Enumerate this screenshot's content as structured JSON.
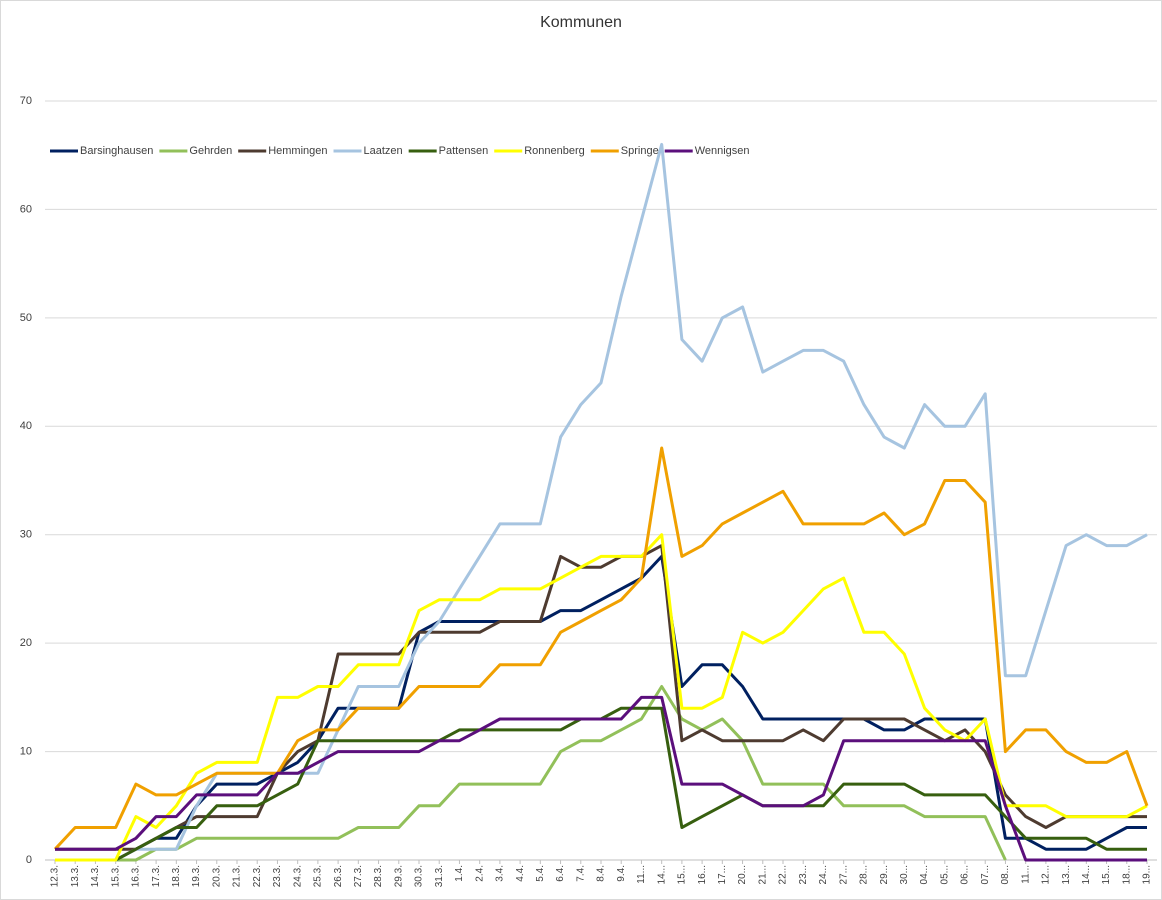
{
  "chart_data": {
    "type": "line",
    "title": "Kommunen",
    "categories": [
      "12.3.",
      "13.3.",
      "14.3.",
      "15.3.",
      "16.3.",
      "17.3.",
      "18.3.",
      "19.3.",
      "20.3.",
      "21.3.",
      "22.3.",
      "23.3.",
      "24.3.",
      "25.3.",
      "26.3.",
      "27.3.",
      "28.3.",
      "29.3.",
      "30.3.",
      "31.3.",
      "1.4.",
      "2.4.",
      "3.4.",
      "4.4.",
      "5.4.",
      "6.4.",
      "7.4.",
      "8.4.",
      "9.4.",
      "11...",
      "14...",
      "15...",
      "16...",
      "17...",
      "20...",
      "21...",
      "22...",
      "23...",
      "24...",
      "27...",
      "28...",
      "29...",
      "30...",
      "04...",
      "05...",
      "06...",
      "07...",
      "08...",
      "11...",
      "12...",
      "13...",
      "14...",
      "15...",
      "18...",
      "19..."
    ],
    "ylim": [
      0,
      70
    ],
    "yticks": [
      0,
      10,
      20,
      30,
      40,
      50,
      60,
      70
    ],
    "grid": true,
    "legend": "top-left",
    "series": [
      {
        "name": "Barsinghausen",
        "color": "#002060",
        "values": [
          null,
          null,
          null,
          0,
          1,
          2,
          2,
          5,
          7,
          7,
          7,
          8,
          9,
          11,
          14,
          14,
          14,
          14,
          21,
          22,
          22,
          22,
          22,
          22,
          22,
          23,
          23,
          24,
          25,
          26,
          28,
          16,
          18,
          18,
          16,
          13,
          13,
          13,
          13,
          13,
          13,
          12,
          12,
          13,
          13,
          13,
          13,
          2,
          2,
          1,
          1,
          1,
          2,
          3,
          3
        ]
      },
      {
        "name": "Gehrden",
        "color": "#92c05a",
        "values": [
          0,
          0,
          0,
          0,
          0,
          1,
          1,
          2,
          2,
          2,
          2,
          2,
          2,
          2,
          2,
          3,
          3,
          3,
          5,
          5,
          7,
          7,
          7,
          7,
          7,
          10,
          11,
          11,
          12,
          13,
          16,
          13,
          12,
          13,
          11,
          7,
          7,
          7,
          7,
          5,
          5,
          5,
          5,
          4,
          4,
          4,
          4,
          0,
          null,
          null,
          null,
          null,
          null,
          null,
          null
        ]
      },
      {
        "name": "Hemmingen",
        "color": "#4e3b30",
        "values": [
          1,
          1,
          1,
          1,
          1,
          2,
          3,
          4,
          4,
          4,
          4,
          8,
          10,
          11,
          19,
          19,
          19,
          19,
          21,
          21,
          21,
          21,
          22,
          22,
          22,
          28,
          27,
          27,
          28,
          28,
          29,
          11,
          12,
          11,
          11,
          11,
          11,
          12,
          11,
          13,
          13,
          13,
          13,
          12,
          11,
          12,
          10,
          6,
          4,
          3,
          4,
          4,
          4,
          4,
          4
        ]
      },
      {
        "name": "Laatzen",
        "color": "#a6c4e0",
        "values": [
          0,
          0,
          0,
          0,
          1,
          1,
          1,
          5,
          8,
          8,
          8,
          8,
          8,
          8,
          12,
          16,
          16,
          16,
          20,
          22,
          25,
          28,
          31,
          31,
          31,
          39,
          42,
          44,
          52,
          59,
          66,
          48,
          46,
          50,
          51,
          45,
          46,
          47,
          47,
          46,
          42,
          39,
          38,
          42,
          40,
          40,
          43,
          17,
          17,
          23,
          29,
          30,
          29,
          29,
          30
        ]
      },
      {
        "name": "Pattensen",
        "color": "#375f0f",
        "values": [
          null,
          null,
          null,
          0,
          1,
          2,
          3,
          3,
          5,
          5,
          5,
          6,
          7,
          11,
          11,
          11,
          11,
          11,
          11,
          11,
          12,
          12,
          12,
          12,
          12,
          12,
          13,
          13,
          14,
          14,
          14,
          3,
          4,
          5,
          6,
          5,
          5,
          5,
          5,
          7,
          7,
          7,
          7,
          6,
          6,
          6,
          6,
          4,
          2,
          2,
          2,
          2,
          1,
          1,
          1
        ]
      },
      {
        "name": "Ronnenberg",
        "color": "#ffff00",
        "values": [
          0,
          0,
          0,
          0,
          4,
          3,
          5,
          8,
          9,
          9,
          9,
          15,
          15,
          16,
          16,
          18,
          18,
          18,
          23,
          24,
          24,
          24,
          25,
          25,
          25,
          26,
          27,
          28,
          28,
          28,
          30,
          14,
          14,
          15,
          21,
          20,
          21,
          23,
          25,
          26,
          21,
          21,
          19,
          14,
          12,
          11,
          13,
          5,
          5,
          5,
          4,
          4,
          4,
          4,
          5
        ]
      },
      {
        "name": "Springe",
        "color": "#f0a000",
        "values": [
          1,
          3,
          3,
          3,
          7,
          6,
          6,
          7,
          8,
          8,
          8,
          8,
          11,
          12,
          12,
          14,
          14,
          14,
          16,
          16,
          16,
          16,
          18,
          18,
          18,
          21,
          22,
          23,
          24,
          26,
          38,
          28,
          29,
          31,
          32,
          33,
          34,
          31,
          31,
          31,
          31,
          32,
          30,
          31,
          35,
          35,
          33,
          10,
          12,
          12,
          10,
          9,
          9,
          10,
          5
        ]
      },
      {
        "name": "Wennigsen",
        "color": "#5b0f7c",
        "values": [
          1,
          1,
          1,
          1,
          2,
          4,
          4,
          6,
          6,
          6,
          6,
          8,
          8,
          9,
          10,
          10,
          10,
          10,
          10,
          11,
          11,
          12,
          13,
          13,
          13,
          13,
          13,
          13,
          13,
          15,
          15,
          7,
          7,
          7,
          6,
          5,
          5,
          5,
          6,
          11,
          11,
          11,
          11,
          11,
          11,
          11,
          11,
          5,
          0,
          0,
          0,
          0,
          0,
          0,
          0
        ]
      }
    ]
  }
}
